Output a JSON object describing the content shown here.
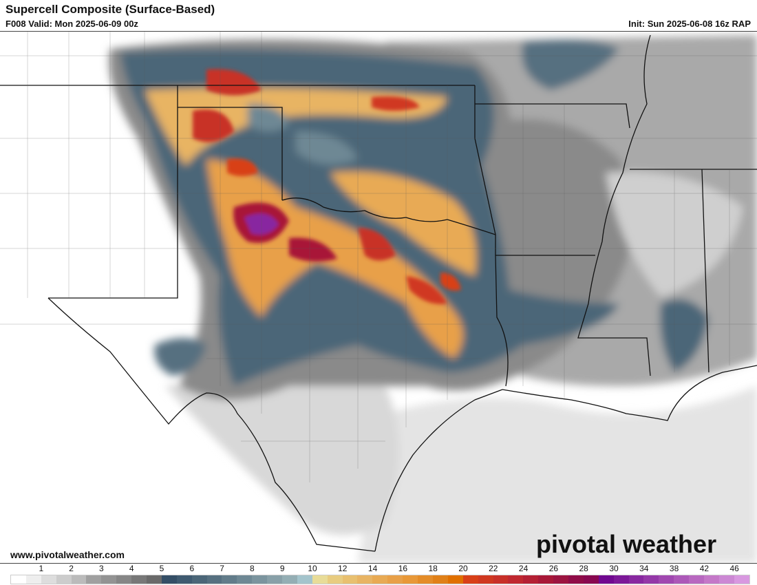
{
  "header": {
    "title": "Supercell Composite (Surface-Based)",
    "valid": "F008 Valid: Mon 2025-06-09 00z",
    "init": "Init: Sun 2025-06-08 16z RAP"
  },
  "footer": {
    "website": "www.pivotalweather.com",
    "logo_text": "pivotal weather"
  },
  "colorbar": {
    "labels": [
      "1",
      "2",
      "3",
      "4",
      "5",
      "6",
      "7",
      "8",
      "9",
      "10",
      "12",
      "14",
      "16",
      "18",
      "20",
      "22",
      "24",
      "26",
      "28",
      "30",
      "34",
      "38",
      "42",
      "46"
    ],
    "colors": [
      "#ffffff",
      "#eeeeee",
      "#dddddd",
      "#cccccc",
      "#bbbbbb",
      "#a0a0a0",
      "#939393",
      "#868686",
      "#787878",
      "#6a6a6a",
      "#344e66",
      "#3f5a70",
      "#4b6678",
      "#567080",
      "#627c8a",
      "#6e8894",
      "#7b949e",
      "#88a0a8",
      "#94aeb4",
      "#a4c4cc",
      "#e8dc98",
      "#e8cc80",
      "#e8c070",
      "#e8b464",
      "#e8aa54",
      "#e8a048",
      "#e89838",
      "#e48c28",
      "#e08018",
      "#e07000",
      "#d84018",
      "#d03820",
      "#c83028",
      "#c02830",
      "#b42034",
      "#a81838",
      "#9c1440",
      "#900c48",
      "#880850",
      "#700890",
      "#7c1898",
      "#8828a0",
      "#9438a8",
      "#a048b0",
      "#ac58b8",
      "#b868c0",
      "#c478c8",
      "#cc88d4",
      "#d898e0"
    ]
  }
}
